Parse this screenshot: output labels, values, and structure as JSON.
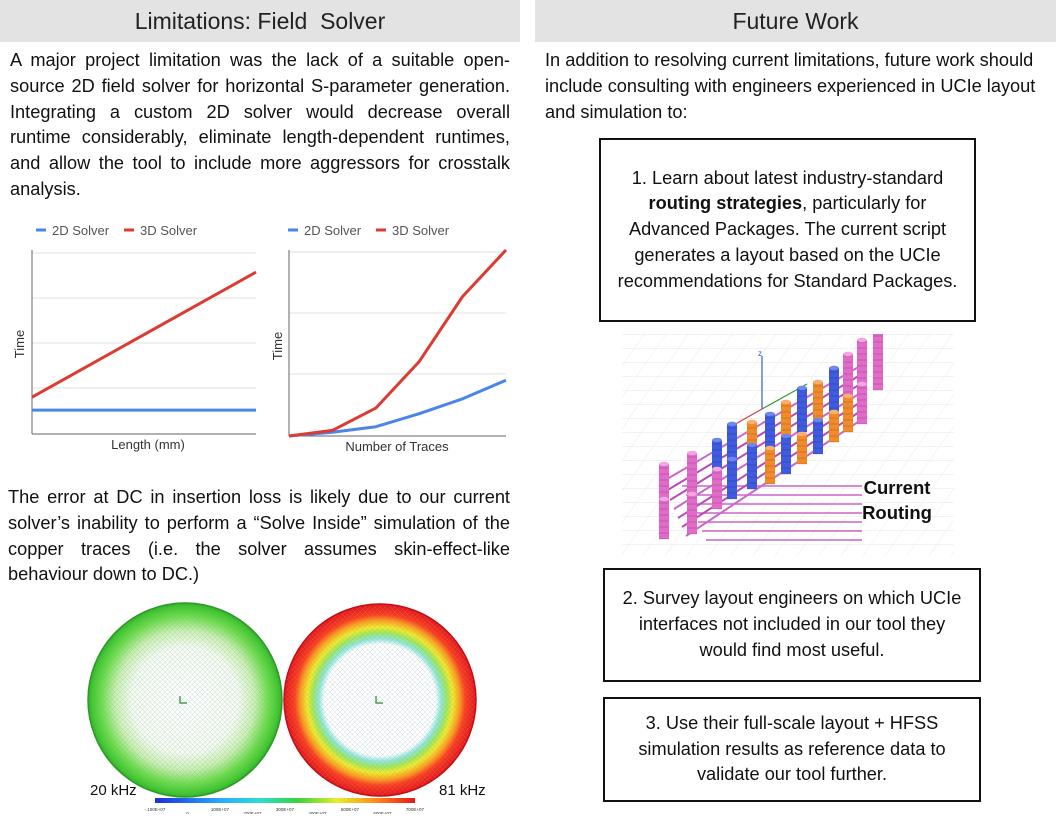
{
  "left": {
    "title": "Limitations: Field  Solver",
    "para1": "A major project limitation was the lack of a suitable open-source 2D field solver for horizontal S-parameter generation. Integrating a custom 2D solver would decrease overall runtime considerably, eliminate length-dependent runtimes, and allow the tool to include more aggressors for crosstalk analysis.",
    "para2": "The error at DC in insertion loss is likely due to our current solver’s inability to perform a “Solve Inside” simulation of the copper traces (i.e. the solver assumes skin-effect-like behaviour down to DC.)",
    "sim": {
      "label_left": "20 kHz",
      "label_right": "81 kHz",
      "colorbar_ticks": [
        "-.100E+07",
        "0",
        "100E+07",
        "200E+07",
        "300E+07",
        "400E+07",
        "500E+07",
        "600E+07",
        "700E+07"
      ]
    }
  },
  "right": {
    "title": "Future Work",
    "intro": "In addition to resolving current limitations, future work should include consulting with engineers experienced in UCIe layout and simulation to:",
    "box1": {
      "pre": "1. Learn about latest industry-standard ",
      "bold": "routing strategies",
      "post": ", particularly for Advanced Packages. The current script generates a layout based on the UCIe recommendations for Standard Packages."
    },
    "routing_label_1": "Current",
    "routing_label_2": "Routing",
    "box2": "2. Survey layout engineers on which UCIe interfaces not included in our tool they would find most useful.",
    "box3": "3. Use their full-scale layout + HFSS simulation results as reference data to validate our tool further."
  },
  "colors": {
    "solver_2d": "#4a86e8",
    "solver_3d": "#dc3b32",
    "header_bg": "#e3e3e3"
  },
  "chart_data": [
    {
      "type": "line",
      "xlabel": "Length (mm)",
      "ylabel": "Time",
      "legend_position": "top-left",
      "grid": true,
      "x": [
        0,
        1
      ],
      "series": [
        {
          "name": "2D Solver",
          "values": [
            0.13,
            0.13
          ]
        },
        {
          "name": "3D Solver",
          "values": [
            0.2,
            0.88
          ]
        }
      ]
    },
    {
      "type": "line",
      "xlabel": "Number of Traces",
      "ylabel": "Time",
      "legend_position": "top-left",
      "grid": true,
      "x": [
        0,
        1,
        2,
        3,
        4,
        5
      ],
      "series": [
        {
          "name": "2D Solver",
          "values": [
            0,
            0.02,
            0.05,
            0.12,
            0.2,
            0.3
          ]
        },
        {
          "name": "3D Solver",
          "values": [
            0,
            0.03,
            0.15,
            0.4,
            0.75,
            1.0
          ]
        }
      ]
    }
  ]
}
